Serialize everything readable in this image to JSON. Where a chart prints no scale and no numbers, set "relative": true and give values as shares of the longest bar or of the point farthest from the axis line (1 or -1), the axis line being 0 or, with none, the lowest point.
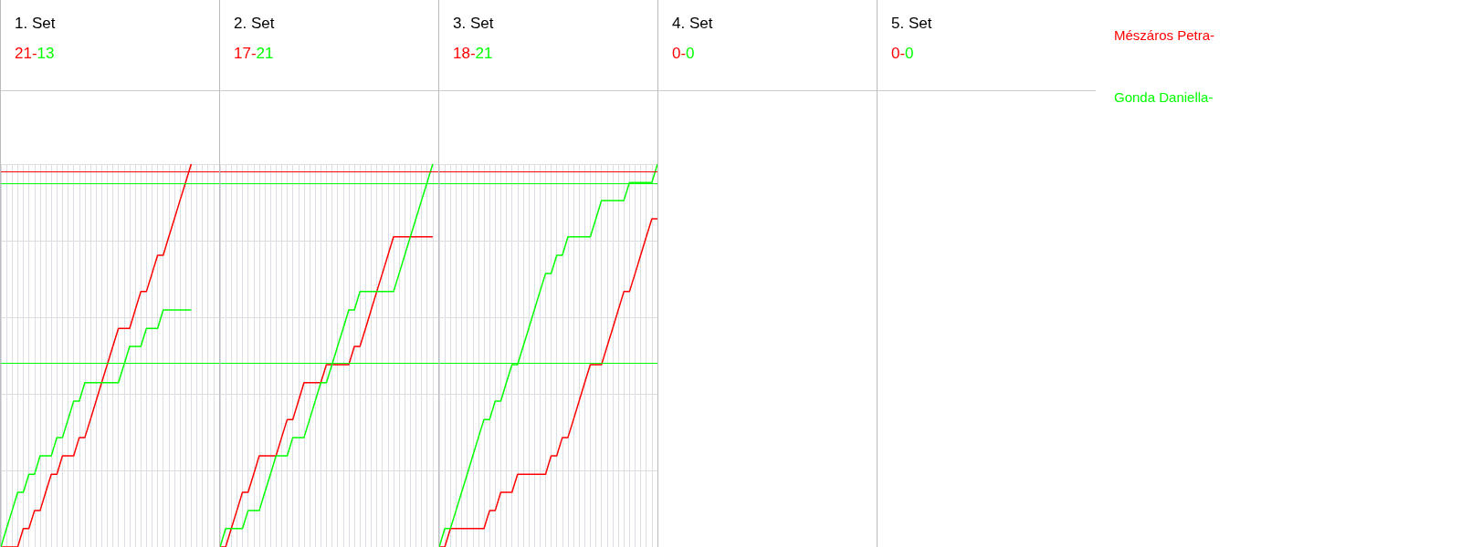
{
  "chart_data": [
    {
      "type": "line",
      "title": "1. Set",
      "annotations": [
        "21-",
        "13"
      ],
      "relative": true,
      "grid": true,
      "legend": "right",
      "categories": [
        null,
        null,
        null,
        null,
        null,
        null,
        null,
        null,
        null,
        null,
        null,
        null,
        null,
        null,
        null,
        null,
        null,
        null,
        null,
        null,
        null,
        null,
        null,
        null,
        null,
        null,
        null,
        null,
        null,
        null,
        null,
        null,
        null,
        null,
        null
      ],
      "series": [
        {
          "name": "Mészáros Petra-",
          "color": "#ff0000",
          "values": [
            0,
            0,
            0,
            0,
            0.048,
            0.048,
            0.095,
            0.095,
            0.143,
            0.19,
            0.19,
            0.238,
            0.238,
            0.238,
            0.286,
            0.286,
            0.333,
            0.381,
            0.429,
            0.476,
            0.524,
            0.571,
            0.571,
            0.571,
            0.619,
            0.667,
            0.667,
            0.714,
            0.762,
            0.762,
            0.81,
            0.857,
            0.905,
            0.952,
            1
          ]
        },
        {
          "name": "Gonda Daniella-",
          "color": "#00ff00",
          "values": [
            0,
            0.048,
            0.095,
            0.143,
            0.143,
            0.19,
            0.19,
            0.238,
            0.238,
            0.238,
            0.286,
            0.286,
            0.333,
            0.381,
            0.381,
            0.429,
            0.429,
            0.429,
            0.429,
            0.429,
            0.429,
            0.429,
            0.476,
            0.524,
            0.524,
            0.524,
            0.571,
            0.571,
            0.571,
            0.619,
            0.619,
            0.619,
            0.619,
            0.619,
            0.619
          ]
        }
      ],
      "ref_lines": [
        {
          "axis": "y",
          "value": 0.976,
          "color": "#ff0000"
        },
        {
          "axis": "y",
          "value": 0.952,
          "color": "#00ff00"
        },
        {
          "axis": "y",
          "value": 0.476,
          "color": "#00ff00"
        }
      ]
    },
    {
      "type": "line",
      "title": "2. Set",
      "annotations": [
        "17-",
        "21"
      ],
      "relative": true,
      "grid": true,
      "categories": [
        null,
        null,
        null,
        null,
        null,
        null,
        null,
        null,
        null,
        null,
        null,
        null,
        null,
        null,
        null,
        null,
        null,
        null,
        null,
        null,
        null,
        null,
        null,
        null,
        null,
        null,
        null,
        null,
        null,
        null,
        null,
        null,
        null,
        null,
        null,
        null,
        null,
        null,
        null
      ],
      "series": [
        {
          "color": "#ff0000",
          "values": [
            0,
            0,
            0.048,
            0.095,
            0.143,
            0.143,
            0.19,
            0.238,
            0.238,
            0.238,
            0.238,
            0.286,
            0.333,
            0.333,
            0.381,
            0.429,
            0.429,
            0.429,
            0.429,
            0.476,
            0.476,
            0.476,
            0.476,
            0.476,
            0.524,
            0.524,
            0.571,
            0.619,
            0.667,
            0.714,
            0.762,
            0.81,
            0.81,
            0.81,
            0.81,
            0.81,
            0.81,
            0.81,
            0.81
          ]
        },
        {
          "color": "#00ff00",
          "values": [
            0,
            0.048,
            0.048,
            0.048,
            0.048,
            0.095,
            0.095,
            0.095,
            0.143,
            0.19,
            0.238,
            0.238,
            0.238,
            0.286,
            0.286,
            0.286,
            0.333,
            0.381,
            0.429,
            0.429,
            0.476,
            0.524,
            0.571,
            0.619,
            0.619,
            0.667,
            0.667,
            0.667,
            0.667,
            0.667,
            0.667,
            0.667,
            0.714,
            0.762,
            0.81,
            0.857,
            0.905,
            0.952,
            1
          ]
        }
      ],
      "ref_lines": [
        {
          "axis": "y",
          "value": 0.976,
          "color": "#ff0000"
        },
        {
          "axis": "y",
          "value": 0.952,
          "color": "#00ff00"
        },
        {
          "axis": "y",
          "value": 0.476,
          "color": "#00ff00"
        }
      ]
    },
    {
      "type": "line",
      "title": "3. Set",
      "annotations": [
        "18-",
        "21"
      ],
      "relative": true,
      "grid": true,
      "categories": [
        null,
        null,
        null,
        null,
        null,
        null,
        null,
        null,
        null,
        null,
        null,
        null,
        null,
        null,
        null,
        null,
        null,
        null,
        null,
        null,
        null,
        null,
        null,
        null,
        null,
        null,
        null,
        null,
        null,
        null,
        null,
        null,
        null,
        null,
        null,
        null,
        null,
        null,
        null,
        null
      ],
      "series": [
        {
          "color": "#ff0000",
          "values": [
            0,
            0,
            0.048,
            0.048,
            0.048,
            0.048,
            0.048,
            0.048,
            0.048,
            0.095,
            0.095,
            0.143,
            0.143,
            0.143,
            0.19,
            0.19,
            0.19,
            0.19,
            0.19,
            0.19,
            0.238,
            0.238,
            0.286,
            0.286,
            0.333,
            0.381,
            0.429,
            0.476,
            0.476,
            0.476,
            0.524,
            0.571,
            0.619,
            0.667,
            0.667,
            0.714,
            0.762,
            0.81,
            0.857,
            0.857
          ]
        },
        {
          "color": "#00ff00",
          "values": [
            0,
            0.048,
            0.048,
            0.095,
            0.143,
            0.19,
            0.238,
            0.286,
            0.333,
            0.333,
            0.381,
            0.381,
            0.429,
            0.476,
            0.476,
            0.524,
            0.571,
            0.619,
            0.667,
            0.714,
            0.714,
            0.762,
            0.762,
            0.81,
            0.81,
            0.81,
            0.81,
            0.81,
            0.857,
            0.905,
            0.905,
            0.905,
            0.905,
            0.905,
            0.952,
            0.952,
            0.952,
            0.952,
            0.952,
            1
          ]
        }
      ],
      "ref_lines": [
        {
          "axis": "y",
          "value": 0.976,
          "color": "#ff0000"
        },
        {
          "axis": "y",
          "value": 0.952,
          "color": "#00ff00"
        },
        {
          "axis": "y",
          "value": 0.476,
          "color": "#00ff00"
        }
      ]
    },
    {
      "type": "other",
      "title": "4. Set",
      "annotations": [
        "0-",
        "0"
      ]
    },
    {
      "type": "other",
      "title": "5. Set",
      "annotations": [
        "0-",
        "0"
      ]
    }
  ]
}
